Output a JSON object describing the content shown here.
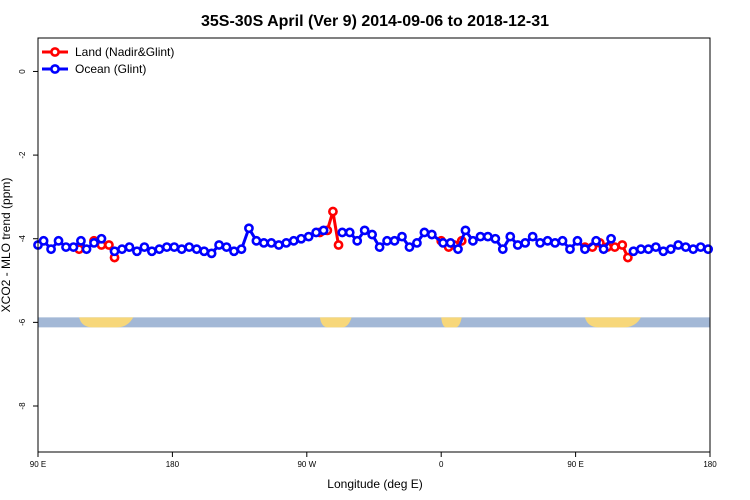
{
  "chart_data": {
    "type": "line",
    "title": "35S-30S April (Ver 9)   2014-09-06 to 2018-12-31",
    "xlabel": "Longitude (deg E)",
    "ylabel": "XCO2 - MLO trend (ppm)",
    "xlim": [
      90,
      450
    ],
    "ylim": [
      -9.1,
      0.8
    ],
    "x_ticks": [
      90,
      162,
      234,
      306,
      378,
      450
    ],
    "x_tick_labels": [
      "90 E",
      "180",
      "90 W",
      "0",
      "90 E",
      "180"
    ],
    "y_ticks": [
      0,
      -2,
      -4,
      -6,
      -8
    ],
    "y_tick_labels": [
      "0",
      "-2",
      "-4",
      "-6",
      "-8"
    ],
    "grid": false,
    "legend_position": "top-left",
    "land_mask": {
      "ocean_color": "#a3b8d6",
      "land_color": "#f7d77a",
      "y_center": -6.0,
      "land_segments": [
        [
          112,
          141
        ],
        [
          241,
          258
        ],
        [
          306,
          317
        ],
        [
          383,
          413
        ]
      ]
    },
    "series": [
      {
        "name": "Land (Nadir&Glint)",
        "color": "#ff0000",
        "x": [
          112,
          120,
          124,
          128,
          131,
          241,
          245,
          248,
          251,
          306,
          310,
          313,
          317,
          383,
          387,
          391,
          395,
          399,
          403,
          406
        ],
        "y": [
          -4.25,
          -4.05,
          -4.15,
          -4.15,
          -4.45,
          -3.85,
          -3.8,
          -3.35,
          -4.15,
          -4.05,
          -4.2,
          -4.15,
          -4.05,
          -4.2,
          -4.2,
          -4.1,
          -4.2,
          -4.2,
          -4.15,
          -4.45
        ]
      },
      {
        "name": "Ocean (Glint)",
        "color": "#0000ff",
        "x": [
          90,
          93,
          97,
          101,
          105,
          109,
          113,
          116,
          120,
          124,
          131,
          135,
          139,
          143,
          147,
          151,
          155,
          159,
          163,
          167,
          171,
          175,
          179,
          183,
          187,
          191,
          195,
          199,
          203,
          207,
          211,
          215,
          219,
          223,
          227,
          231,
          235,
          239,
          243,
          253,
          257,
          261,
          265,
          269,
          273,
          277,
          281,
          285,
          289,
          293,
          297,
          301,
          307,
          311,
          315,
          319,
          323,
          327,
          331,
          335,
          339,
          343,
          347,
          351,
          355,
          359,
          363,
          367,
          371,
          375,
          379,
          383,
          389,
          393,
          397,
          409,
          413,
          417,
          421,
          425,
          429,
          433,
          437,
          441,
          445,
          449
        ],
        "y": [
          -4.15,
          -4.05,
          -4.25,
          -4.05,
          -4.2,
          -4.2,
          -4.05,
          -4.25,
          -4.1,
          -4.0,
          -4.3,
          -4.25,
          -4.2,
          -4.3,
          -4.2,
          -4.3,
          -4.25,
          -4.2,
          -4.2,
          -4.25,
          -4.2,
          -4.25,
          -4.3,
          -4.35,
          -4.15,
          -4.2,
          -4.3,
          -4.25,
          -3.75,
          -4.05,
          -4.1,
          -4.1,
          -4.15,
          -4.1,
          -4.05,
          -4.0,
          -3.95,
          -3.85,
          -3.8,
          -3.85,
          -3.85,
          -4.05,
          -3.8,
          -3.9,
          -4.2,
          -4.05,
          -4.05,
          -3.95,
          -4.2,
          -4.1,
          -3.85,
          -3.9,
          -4.1,
          -4.1,
          -4.25,
          -3.8,
          -4.05,
          -3.95,
          -3.95,
          -4.0,
          -4.25,
          -3.95,
          -4.15,
          -4.1,
          -3.95,
          -4.1,
          -4.05,
          -4.1,
          -4.05,
          -4.25,
          -4.05,
          -4.25,
          -4.05,
          -4.25,
          -4.0,
          -4.3,
          -4.25,
          -4.25,
          -4.2,
          -4.3,
          -4.25,
          -4.15,
          -4.2,
          -4.25,
          -4.2,
          -4.25
        ]
      }
    ]
  }
}
